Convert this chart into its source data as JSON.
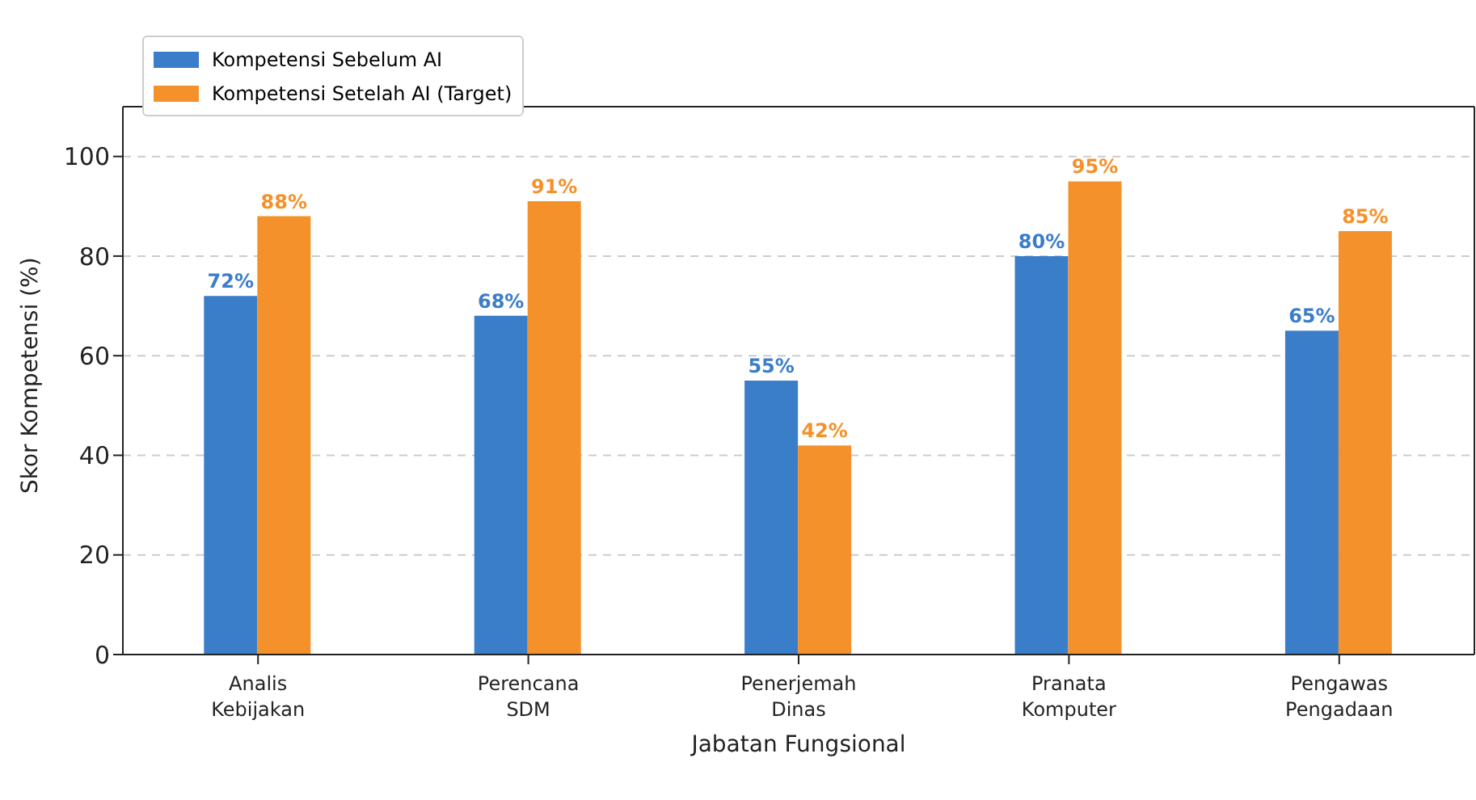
{
  "chart_data": {
    "type": "bar",
    "xlabel": "Jabatan Fungsional",
    "ylabel": "Skor Kompetensi (%)",
    "categories": [
      "Analis Kebijakan",
      "Perencana SDM",
      "Penerjemah Dinas",
      "Pranata Komputer",
      "Pengawas Pengadaan"
    ],
    "series": [
      {
        "name": "Kompetensi Sebelum AI",
        "color": "#3a7dc9",
        "values": [
          72,
          68,
          55,
          80,
          65
        ],
        "value_labels": [
          "72%",
          "68%",
          "55%",
          "80%",
          "65%"
        ]
      },
      {
        "name": "Kompetensi Setelah AI (Target)",
        "color": "#f5912a",
        "values": [
          88,
          91,
          42,
          95,
          85
        ],
        "value_labels": [
          "88%",
          "91%",
          "42%",
          "95%",
          "85%"
        ]
      }
    ],
    "ylim": [
      0,
      110
    ],
    "yticks": [
      0,
      20,
      40,
      60,
      80,
      100
    ],
    "grid": "y",
    "legend": "top left"
  }
}
